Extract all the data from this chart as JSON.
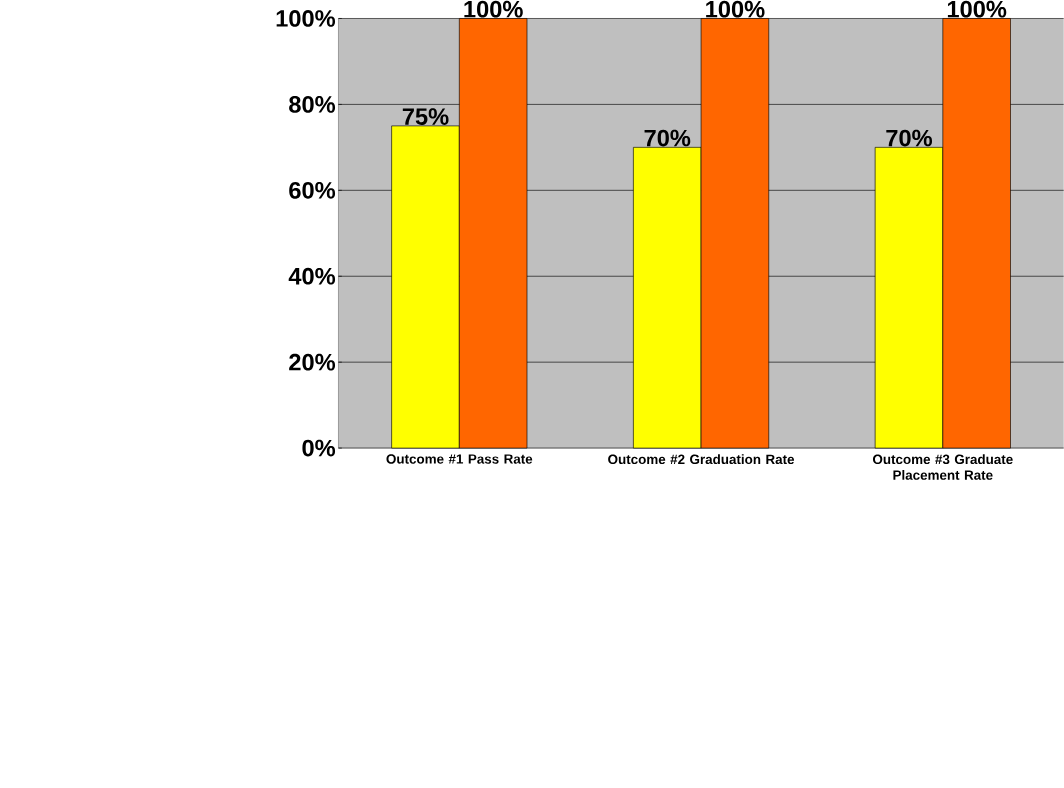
{
  "chart_data": {
    "type": "bar",
    "categories": [
      "Outcome #1 Pass Rate",
      "Outcome #2 Graduation Rate",
      "Outcome #3 Graduate Placement Rate"
    ],
    "series": [
      {
        "color": "#ffff00",
        "values": [
          75,
          70,
          70
        ],
        "value_labels": [
          "75%",
          "70%",
          "70%"
        ]
      },
      {
        "color": "#ff6600",
        "values": [
          100,
          100,
          100
        ],
        "value_labels": [
          "100%",
          "100%",
          "100%"
        ]
      }
    ],
    "ylim": [
      0,
      100
    ],
    "yticks": [
      {
        "value": 0,
        "label": "0%"
      },
      {
        "value": 20,
        "label": "20%"
      },
      {
        "value": 40,
        "label": "40%"
      },
      {
        "value": 60,
        "label": "60%"
      },
      {
        "value": 80,
        "label": "80%"
      },
      {
        "value": 100,
        "label": "100%"
      }
    ],
    "grid": "y"
  }
}
